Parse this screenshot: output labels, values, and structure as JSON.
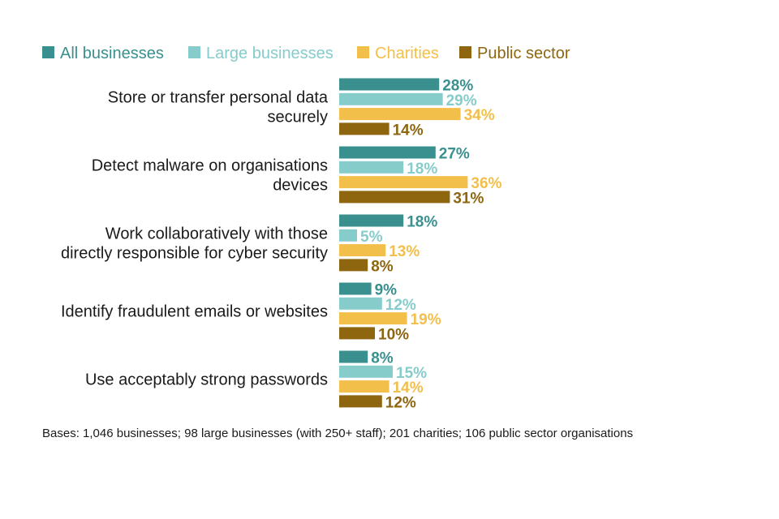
{
  "chart_data": {
    "type": "bar",
    "orientation": "horizontal",
    "categories": [
      [
        "Store or transfer personal data",
        "securely"
      ],
      [
        "Detect malware on organisations",
        "devices"
      ],
      [
        "Work collaboratively with those",
        "directly responsible for cyber security"
      ],
      [
        "Identify fraudulent emails or websites"
      ],
      [
        "Use acceptably strong passwords"
      ]
    ],
    "series": [
      {
        "name": "All businesses",
        "color": "#3a8f8f",
        "values": [
          28,
          27,
          18,
          9,
          8
        ]
      },
      {
        "name": "Large businesses",
        "color": "#86cccb",
        "values": [
          29,
          18,
          5,
          12,
          15
        ]
      },
      {
        "name": "Charities",
        "color": "#f2bf4a",
        "values": [
          34,
          36,
          13,
          19,
          14
        ]
      },
      {
        "name": "Public sector",
        "color": "#8e6610",
        "values": [
          14,
          31,
          8,
          10,
          12
        ]
      }
    ],
    "value_suffix": "%",
    "xlim": [
      0,
      100
    ],
    "grid": false,
    "legend_position": "top"
  },
  "footnote": "Bases: 1,046 businesses; 98 large businesses (with 250+ staff); 201 charities; 106 public sector organisations"
}
